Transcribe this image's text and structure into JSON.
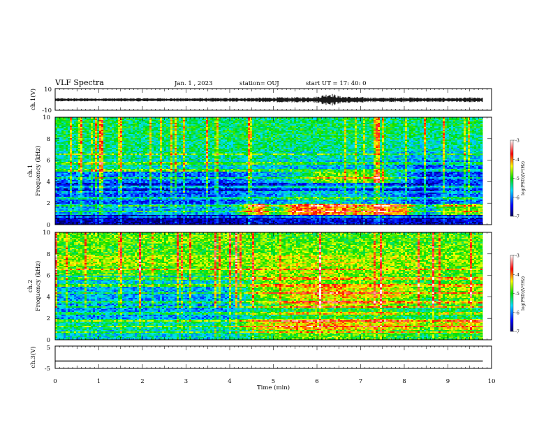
{
  "header": {
    "title": "VLF Spectra",
    "date": "Jan. 1 , 2023",
    "station": "station= OUJ",
    "start": "start UT = 17: 40: 0"
  },
  "chart_data": [
    {
      "type": "line",
      "ylabel": "ch.1(V)",
      "xlim": [
        0,
        10
      ],
      "ylim": [
        -10,
        10
      ],
      "yticks": [
        "10",
        "-10"
      ],
      "x": [
        0,
        1,
        2,
        3,
        4,
        4.5,
        5,
        5.5,
        6,
        6.3,
        6.5,
        7,
        7.5,
        8,
        8.5,
        9,
        9.5,
        9.8
      ],
      "envelope": [
        1.5,
        1.5,
        1.6,
        1.6,
        1.8,
        2.0,
        2.3,
        2.5,
        3.0,
        6.5,
        3.5,
        2.5,
        2.0,
        2.5,
        2.0,
        2.0,
        2.2,
        2.0
      ]
    },
    {
      "type": "heatmap",
      "ylabel": "ch.1 Frequency (kHz)",
      "colorbar_label": "log(PSD)(V²/Hz)",
      "colorbar_ticks": [
        "-3",
        "-4",
        "-5",
        "-6",
        "-7"
      ],
      "clim": [
        -7,
        -3
      ],
      "xlim": [
        0,
        10
      ],
      "ylim": [
        0,
        10
      ],
      "yticks": [
        "0",
        "2",
        "4",
        "6",
        "8",
        "10"
      ],
      "time_min": [
        0,
        1,
        2,
        3,
        4,
        4.7,
        5,
        5.5,
        6,
        6.5,
        7,
        7.5,
        8,
        8.5,
        9,
        9.8
      ],
      "freq_khz": [
        0.5,
        1.5,
        2.5,
        3.5,
        4.5,
        5.5,
        6.5,
        7.5,
        8.5,
        9.5
      ],
      "log_psd": [
        [
          -6.8,
          -5.8,
          -6.2,
          -6.5,
          -6.0,
          -5.5,
          -5.4,
          -5.3,
          -5.2,
          -5.2
        ],
        [
          -6.8,
          -5.8,
          -6.2,
          -6.5,
          -6.0,
          -5.5,
          -5.4,
          -5.3,
          -5.2,
          -5.2
        ],
        [
          -6.8,
          -5.8,
          -6.2,
          -6.5,
          -6.0,
          -5.5,
          -5.4,
          -5.3,
          -5.2,
          -5.2
        ],
        [
          -6.8,
          -5.8,
          -6.2,
          -6.5,
          -6.1,
          -5.6,
          -5.4,
          -5.3,
          -5.2,
          -5.2
        ],
        [
          -6.8,
          -5.8,
          -6.2,
          -6.6,
          -6.1,
          -5.6,
          -5.4,
          -5.3,
          -5.2,
          -5.2
        ],
        [
          -6.5,
          -4.0,
          -5.8,
          -6.4,
          -5.8,
          -5.6,
          -5.4,
          -5.3,
          -5.2,
          -5.2
        ],
        [
          -6.6,
          -5.5,
          -6.0,
          -6.4,
          -5.8,
          -5.6,
          -5.4,
          -5.3,
          -5.2,
          -5.2
        ],
        [
          -6.5,
          -4.0,
          -5.6,
          -6.2,
          -5.5,
          -5.7,
          -5.5,
          -5.3,
          -5.2,
          -5.2
        ],
        [
          -6.5,
          -4.0,
          -5.6,
          -6.2,
          -4.8,
          -5.7,
          -5.5,
          -5.3,
          -5.2,
          -5.2
        ],
        [
          -6.5,
          -4.0,
          -5.6,
          -6.2,
          -4.8,
          -5.7,
          -5.5,
          -5.3,
          -5.2,
          -5.2
        ],
        [
          -6.6,
          -4.5,
          -5.8,
          -6.3,
          -4.8,
          -5.8,
          -5.5,
          -5.3,
          -5.2,
          -5.2
        ],
        [
          -6.5,
          -4.0,
          -5.8,
          -6.4,
          -5.0,
          -5.8,
          -5.6,
          -5.4,
          -5.2,
          -5.2
        ],
        [
          -6.6,
          -4.5,
          -6.0,
          -6.5,
          -5.8,
          -6.0,
          -5.7,
          -5.4,
          -5.3,
          -5.2
        ],
        [
          -6.8,
          -6.0,
          -6.4,
          -6.6,
          -6.5,
          -6.3,
          -5.8,
          -5.5,
          -5.3,
          -5.2
        ],
        [
          -6.6,
          -4.8,
          -6.0,
          -6.2,
          -6.2,
          -6.0,
          -5.6,
          -5.4,
          -5.3,
          -5.2
        ],
        [
          -6.6,
          -4.8,
          -6.0,
          -6.2,
          -6.2,
          -6.0,
          -5.6,
          -5.4,
          -5.3,
          -5.2
        ]
      ]
    },
    {
      "type": "heatmap",
      "ylabel": "ch.2 Frequency (kHz)",
      "colorbar_label": "log(PSD)(V²/Hz)",
      "colorbar_ticks": [
        "-3",
        "-4",
        "-5",
        "-6",
        "-7"
      ],
      "clim": [
        -7,
        -3
      ],
      "xlim": [
        0,
        10
      ],
      "ylim": [
        0,
        10
      ],
      "yticks": [
        "0",
        "2",
        "4",
        "6",
        "8",
        "10"
      ],
      "time_min": [
        0,
        1,
        2,
        3,
        4,
        4.7,
        5,
        5.5,
        6,
        6.5,
        7,
        7.5,
        8,
        8.5,
        9,
        9.8
      ],
      "freq_khz": [
        0.5,
        1.5,
        2.5,
        3.5,
        4.5,
        5.5,
        6.5,
        7.5,
        8.5,
        9.5
      ],
      "log_psd": [
        [
          -5.6,
          -5.4,
          -5.9,
          -5.9,
          -5.8,
          -5.6,
          -4.9,
          -4.6,
          -4.9,
          -4.8
        ],
        [
          -5.6,
          -5.4,
          -5.9,
          -5.9,
          -5.8,
          -5.6,
          -4.9,
          -4.6,
          -4.9,
          -4.8
        ],
        [
          -5.6,
          -5.4,
          -5.9,
          -5.9,
          -5.8,
          -5.6,
          -4.9,
          -4.7,
          -4.9,
          -4.8
        ],
        [
          -5.6,
          -5.4,
          -5.9,
          -5.9,
          -5.8,
          -5.6,
          -4.9,
          -4.7,
          -4.9,
          -4.8
        ],
        [
          -5.6,
          -5.4,
          -5.9,
          -5.9,
          -5.8,
          -5.6,
          -4.9,
          -4.7,
          -4.9,
          -4.8
        ],
        [
          -5.0,
          -4.4,
          -5.3,
          -5.0,
          -4.7,
          -4.8,
          -4.7,
          -4.6,
          -4.8,
          -4.9
        ],
        [
          -5.0,
          -4.4,
          -5.3,
          -5.0,
          -4.7,
          -4.8,
          -4.7,
          -4.6,
          -4.8,
          -4.9
        ],
        [
          -4.8,
          -4.2,
          -5.0,
          -4.6,
          -4.4,
          -4.7,
          -4.6,
          -4.5,
          -4.8,
          -4.9
        ],
        [
          -4.8,
          -4.2,
          -5.0,
          -4.4,
          -4.2,
          -4.7,
          -4.6,
          -4.5,
          -4.8,
          -4.9
        ],
        [
          -4.8,
          -4.2,
          -5.0,
          -4.4,
          -4.2,
          -4.7,
          -4.6,
          -4.5,
          -4.8,
          -4.9
        ],
        [
          -4.9,
          -4.4,
          -5.1,
          -4.6,
          -4.4,
          -4.8,
          -4.7,
          -4.6,
          -4.8,
          -4.9
        ],
        [
          -4.9,
          -4.3,
          -5.0,
          -4.6,
          -4.4,
          -4.8,
          -4.7,
          -4.6,
          -4.8,
          -4.9
        ],
        [
          -5.0,
          -4.4,
          -5.2,
          -4.8,
          -4.6,
          -4.9,
          -4.8,
          -4.6,
          -4.8,
          -4.9
        ],
        [
          -5.2,
          -4.9,
          -5.4,
          -5.1,
          -4.9,
          -5.0,
          -4.8,
          -4.7,
          -4.8,
          -4.9
        ],
        [
          -5.0,
          -4.4,
          -5.2,
          -4.9,
          -4.6,
          -4.9,
          -4.8,
          -4.7,
          -4.8,
          -4.9
        ],
        [
          -5.0,
          -4.4,
          -5.2,
          -4.9,
          -4.6,
          -4.9,
          -4.8,
          -4.7,
          -4.8,
          -4.9
        ]
      ]
    },
    {
      "type": "line",
      "ylabel": "ch.3(V)",
      "xlim": [
        0,
        10
      ],
      "ylim": [
        -5,
        5
      ],
      "yticks": [
        "5",
        "-5"
      ],
      "x": [
        0,
        9.8
      ],
      "y": [
        -1.7,
        -1.7
      ],
      "xlabel": "Time (min)",
      "xticks": [
        "0",
        "1",
        "2",
        "3",
        "4",
        "5",
        "6",
        "7",
        "8",
        "9",
        "10"
      ]
    }
  ]
}
